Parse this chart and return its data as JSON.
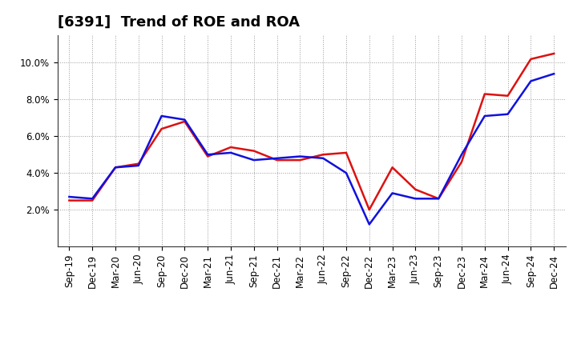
{
  "title": "[6391]  Trend of ROE and ROA",
  "x_labels": [
    "Sep-19",
    "Dec-19",
    "Mar-20",
    "Jun-20",
    "Sep-20",
    "Dec-20",
    "Mar-21",
    "Jun-21",
    "Sep-21",
    "Dec-21",
    "Mar-22",
    "Jun-22",
    "Sep-22",
    "Dec-22",
    "Mar-23",
    "Jun-23",
    "Sep-23",
    "Dec-23",
    "Mar-24",
    "Jun-24",
    "Sep-24",
    "Dec-24"
  ],
  "ROE": [
    2.5,
    2.5,
    4.3,
    4.5,
    6.4,
    6.8,
    4.9,
    5.4,
    5.2,
    4.7,
    4.7,
    5.0,
    5.1,
    2.0,
    4.3,
    3.1,
    2.6,
    4.6,
    8.3,
    8.2,
    10.2,
    10.5
  ],
  "ROA": [
    2.7,
    2.6,
    4.3,
    4.4,
    7.1,
    6.9,
    5.0,
    5.1,
    4.7,
    4.8,
    4.9,
    4.8,
    4.0,
    1.2,
    2.9,
    2.6,
    2.6,
    5.0,
    7.1,
    7.2,
    9.0,
    9.4
  ],
  "roe_color": "#dd1111",
  "roa_color": "#1111dd",
  "background_color": "#ffffff",
  "plot_bg_color": "#ffffff",
  "grid_color": "#999999",
  "ylim": [
    0.0,
    11.5
  ],
  "yticks": [
    2.0,
    4.0,
    6.0,
    8.0,
    10.0
  ],
  "line_width": 1.8,
  "title_fontsize": 13,
  "legend_fontsize": 10,
  "tick_fontsize": 8.5
}
